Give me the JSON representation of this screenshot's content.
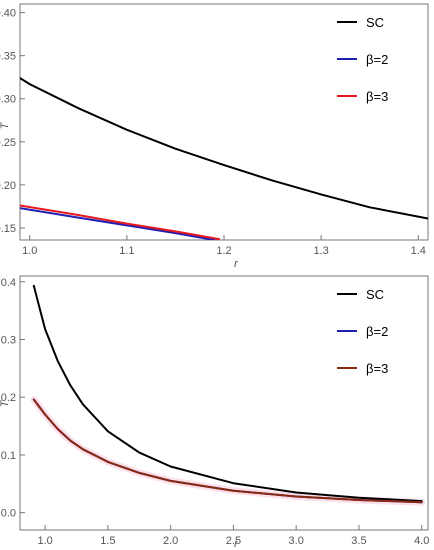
{
  "chart_data": [
    {
      "type": "line",
      "xlabel": "r",
      "ylabel": "T",
      "xlim": [
        0.99,
        1.41
      ],
      "ylim": [
        0.136,
        0.41
      ],
      "xticks": [
        "1.0",
        "1.1",
        "1.2",
        "1.3",
        "1.4"
      ],
      "xtick_values": [
        1.0,
        1.1,
        1.2,
        1.3,
        1.4
      ],
      "yticks": [
        "0.15",
        "0.20",
        "0.25",
        "0.30",
        "0.35",
        "0.40"
      ],
      "ytick_values": [
        0.15,
        0.2,
        0.25,
        0.3,
        0.35,
        0.4
      ],
      "grid": false,
      "legend_position": "top-right",
      "series": [
        {
          "name": "SC",
          "color": "#000000",
          "x": [
            0.99,
            1.0,
            1.05,
            1.1,
            1.15,
            1.2,
            1.25,
            1.3,
            1.35,
            1.41
          ],
          "y": [
            0.324,
            0.317,
            0.289,
            0.264,
            0.242,
            0.223,
            0.205,
            0.189,
            0.174,
            0.161
          ]
        },
        {
          "name": "β=2",
          "color": "#1f1fb4",
          "x": [
            0.99,
            1.05,
            1.1,
            1.15,
            1.19
          ],
          "y": [
            0.173,
            0.162,
            0.153,
            0.144,
            0.136
          ]
        },
        {
          "name": "β=3",
          "color": "#e8191e",
          "x": [
            0.99,
            1.05,
            1.1,
            1.15,
            1.195
          ],
          "y": [
            0.176,
            0.165,
            0.155,
            0.146,
            0.137
          ]
        }
      ]
    },
    {
      "type": "line",
      "xlabel": "r",
      "ylabel": "T",
      "xlim": [
        0.8,
        4.05
      ],
      "ylim": [
        -0.03,
        0.41
      ],
      "xticks": [
        "1.0",
        "1.5",
        "2.0",
        "2.5",
        "3.0",
        "3.5",
        "4.0"
      ],
      "xtick_values": [
        1.0,
        1.5,
        2.0,
        2.5,
        3.0,
        3.5,
        4.0
      ],
      "yticks": [
        "0.0",
        "0.1",
        "0.2",
        "0.3",
        "0.4"
      ],
      "ytick_values": [
        0.0,
        0.1,
        0.2,
        0.3,
        0.4
      ],
      "grid": false,
      "legend_position": "top-right",
      "series": [
        {
          "name": "SC",
          "color": "#000000",
          "x": [
            0.91,
            1.0,
            1.1,
            1.2,
            1.3,
            1.5,
            1.75,
            2.0,
            2.5,
            3.0,
            3.5,
            4.0
          ],
          "y": [
            0.393,
            0.318,
            0.263,
            0.221,
            0.188,
            0.141,
            0.104,
            0.08,
            0.051,
            0.035,
            0.026,
            0.02
          ]
        },
        {
          "name": "β=2",
          "color": "#1f1fb4",
          "x": [
            0.91,
            1.0,
            1.1,
            1.2,
            1.3,
            1.5,
            1.75,
            2.0,
            2.5,
            3.0,
            3.5,
            4.0
          ],
          "y": [
            0.196,
            0.17,
            0.145,
            0.125,
            0.11,
            0.088,
            0.069,
            0.055,
            0.038,
            0.028,
            0.022,
            0.018
          ]
        },
        {
          "name": "β=3",
          "color": "#8b2a10",
          "x": [
            0.91,
            1.0,
            1.1,
            1.2,
            1.3,
            1.5,
            1.75,
            2.0,
            2.5,
            3.0,
            3.5,
            4.0
          ],
          "y": [
            0.196,
            0.17,
            0.145,
            0.125,
            0.11,
            0.088,
            0.069,
            0.055,
            0.038,
            0.028,
            0.022,
            0.018
          ]
        }
      ]
    }
  ]
}
